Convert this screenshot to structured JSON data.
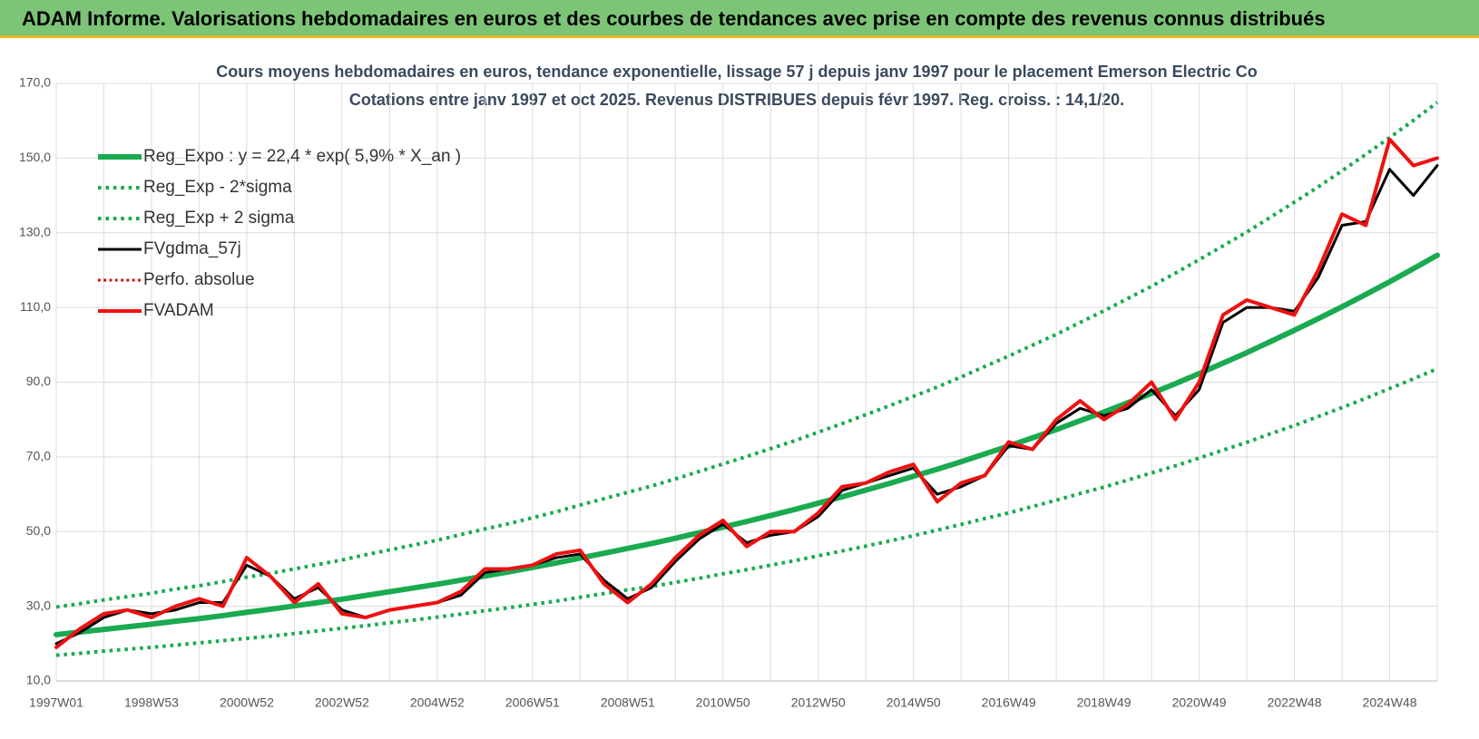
{
  "chart_data": {
    "type": "line",
    "header": "ADAM Informe. Valorisations hebdomadaires en euros et des courbes de tendances avec prise en compte des revenus connus distribués",
    "title": "Cours moyens hebdomadaires en euros, tendance exponentielle, lissage 57 j depuis janv 1997 pour le placement Emerson Electric Co",
    "subtitle": "Cotations entre janv 1997 et oct 2025. Revenus DISTRIBUES depuis févr 1997. Reg. croiss. : 14,1/20.",
    "categories": [
      "1997W01",
      null,
      null,
      null,
      "1998W53",
      null,
      null,
      null,
      "2000W52",
      null,
      null,
      null,
      "2002W52",
      null,
      null,
      null,
      "2004W52",
      null,
      null,
      null,
      "2006W51",
      null,
      null,
      null,
      "2008W51",
      null,
      null,
      null,
      "2010W50",
      null,
      null,
      null,
      "2012W50",
      null,
      null,
      null,
      "2014W50",
      null,
      null,
      null,
      "2016W49",
      null,
      null,
      null,
      "2018W49",
      null,
      null,
      null,
      "2020W49",
      null,
      null,
      null,
      "2022W48",
      null,
      null,
      null,
      "2024W48",
      null,
      null
    ],
    "ylim": [
      10,
      170
    ],
    "yticks": [
      {
        "value": 10,
        "label": "10,0"
      },
      {
        "value": 30,
        "label": "30,0"
      },
      {
        "value": 50,
        "label": "50,0"
      },
      {
        "value": 70,
        "label": "70,0"
      },
      {
        "value": 90,
        "label": "90,0"
      },
      {
        "value": 110,
        "label": "110,0"
      },
      {
        "value": 130,
        "label": "130,0"
      },
      {
        "value": 150,
        "label": "150,0"
      },
      {
        "value": 170,
        "label": "170,0"
      }
    ],
    "grid": true,
    "legend": "upper left",
    "series": [
      {
        "name": "Reg_Expo : y = 22,4 * exp( 5,9% *  X_an )",
        "color": "#1aaa50",
        "style": "solid",
        "width": 6,
        "values": [
          22.4,
          23.1,
          23.8,
          24.5,
          25.2,
          26.0,
          26.7,
          27.5,
          28.4,
          29.2,
          30.1,
          31.0,
          31.9,
          32.9,
          33.9,
          34.9,
          35.9,
          37.0,
          38.1,
          39.2,
          40.4,
          41.6,
          42.9,
          44.2,
          45.5,
          46.8,
          48.2,
          49.7,
          51.2,
          52.7,
          54.3,
          55.9,
          57.6,
          59.3,
          61.1,
          62.9,
          64.8,
          66.7,
          68.7,
          70.8,
          72.9,
          75.1,
          77.3,
          79.7,
          82.0,
          84.5,
          87.0,
          89.6,
          92.3,
          95.1,
          97.9,
          100.9,
          103.9,
          107.0,
          110.2,
          113.5,
          116.9,
          120.4,
          124.0
        ]
      },
      {
        "name": "Reg_Exp - 2*sigma",
        "color": "#1aaa50",
        "style": "dotted",
        "width": 4,
        "values": [
          16.9,
          17.4,
          18.0,
          18.5,
          19.0,
          19.6,
          20.2,
          20.8,
          21.4,
          22.0,
          22.7,
          23.4,
          24.1,
          24.8,
          25.6,
          26.3,
          27.1,
          27.9,
          28.8,
          29.6,
          30.5,
          31.4,
          32.4,
          33.4,
          34.4,
          35.3,
          36.4,
          37.5,
          38.7,
          39.8,
          41.0,
          42.2,
          43.5,
          44.8,
          46.1,
          47.5,
          48.9,
          50.4,
          51.9,
          53.5,
          55.0,
          56.7,
          58.4,
          60.2,
          61.9,
          63.8,
          65.7,
          67.6,
          69.7,
          71.8,
          73.9,
          76.2,
          78.4,
          80.8,
          83.2,
          85.7,
          88.3,
          90.9,
          93.6
        ]
      },
      {
        "name": "Reg_Exp + 2 sigma",
        "color": "#1aaa50",
        "style": "dotted",
        "width": 4,
        "values": [
          29.8,
          30.7,
          31.7,
          32.6,
          33.5,
          34.6,
          35.5,
          36.6,
          37.8,
          38.8,
          40.0,
          41.2,
          42.4,
          43.8,
          45.1,
          46.4,
          47.7,
          49.2,
          50.7,
          52.1,
          53.7,
          55.3,
          57.1,
          58.8,
          60.5,
          62.2,
          64.1,
          66.1,
          68.1,
          70.1,
          72.2,
          74.3,
          76.6,
          78.9,
          81.3,
          83.7,
          86.2,
          88.7,
          91.4,
          94.2,
          97.0,
          99.9,
          102.8,
          106.0,
          109.1,
          112.4,
          115.7,
          119.2,
          122.8,
          126.5,
          130.2,
          134.2,
          138.2,
          142.3,
          146.6,
          151.0,
          155.5,
          160.1,
          164.9
        ]
      },
      {
        "name": "FVgdma_57j",
        "color": "#000000",
        "style": "solid",
        "width": 3,
        "values": [
          20,
          23,
          27,
          29,
          28,
          29,
          31,
          31,
          41,
          38,
          32,
          35,
          29,
          27,
          29,
          30,
          31,
          33,
          39,
          40,
          41,
          43,
          44,
          37,
          32,
          35,
          42,
          48,
          52,
          47,
          49,
          50,
          54,
          61,
          63,
          65,
          67,
          60,
          62,
          65,
          73,
          72,
          79,
          83,
          81,
          83,
          88,
          81,
          88,
          106,
          110,
          110,
          109,
          118,
          132,
          133,
          147,
          140,
          148
        ]
      },
      {
        "name": "Perfo. absolue",
        "color": "#cc0000",
        "style": "dotted",
        "width": 3,
        "values": [
          19,
          24,
          28,
          29,
          27,
          30,
          32,
          30,
          43,
          38,
          31,
          36,
          28,
          27,
          29,
          30,
          31,
          34,
          40,
          40,
          41,
          44,
          45,
          36,
          31,
          36,
          43,
          49,
          53,
          46,
          50,
          50,
          55,
          62,
          63,
          66,
          68,
          58,
          63,
          65,
          74,
          72,
          80,
          85,
          80,
          84,
          90,
          80,
          90,
          108,
          112,
          110,
          108,
          120,
          135,
          132,
          155,
          148,
          150
        ]
      },
      {
        "name": "FVADAM",
        "color": "#ee1111",
        "style": "solid",
        "width": 4,
        "values": [
          19,
          24,
          28,
          29,
          27,
          30,
          32,
          30,
          43,
          38,
          31,
          36,
          28,
          27,
          29,
          30,
          31,
          34,
          40,
          40,
          41,
          44,
          45,
          36,
          31,
          36,
          43,
          49,
          53,
          46,
          50,
          50,
          55,
          62,
          63,
          66,
          68,
          58,
          63,
          65,
          74,
          72,
          80,
          85,
          80,
          84,
          90,
          80,
          90,
          108,
          112,
          110,
          108,
          120,
          135,
          132,
          155,
          148,
          150
        ]
      }
    ]
  }
}
